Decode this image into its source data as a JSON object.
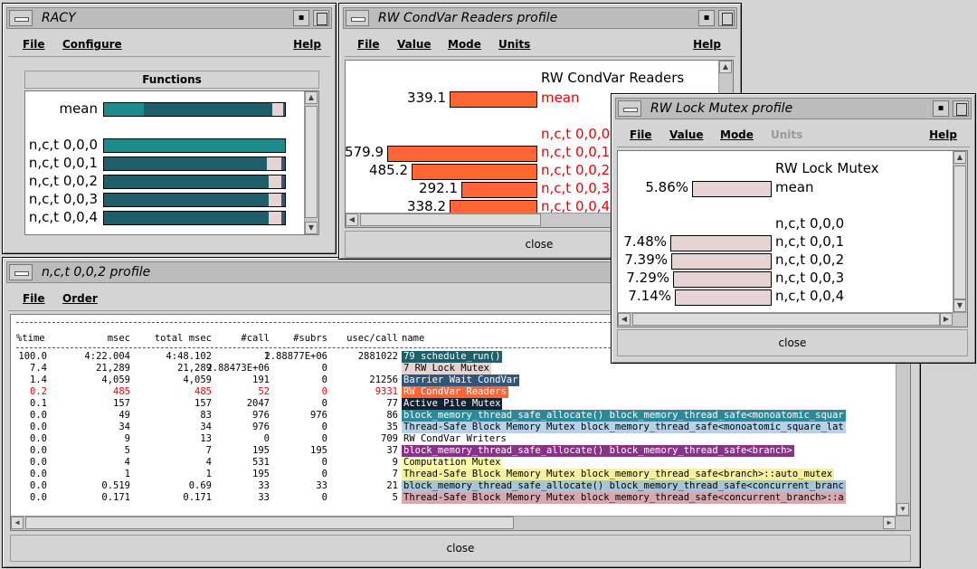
{
  "racy": {
    "title": "RACY",
    "menu": {
      "file": "File",
      "configure": "Configure",
      "help": "Help"
    },
    "functions_header": "Functions",
    "rows": [
      {
        "label": "mean",
        "segments": [
          {
            "w": 0.22,
            "color": "#1a8c8c"
          },
          {
            "w": 0.71,
            "color": "#1f5f6a"
          },
          {
            "w": 0.06,
            "color": "#e6d4d4"
          },
          {
            "w": 0.01,
            "color": "#335577"
          }
        ]
      },
      {
        "label": "n,c,t 0,0,0",
        "segments": [
          {
            "w": 1.0,
            "color": "#1a8c8c"
          }
        ]
      },
      {
        "label": "n,c,t 0,0,1",
        "segments": [
          {
            "w": 0.9,
            "color": "#1f5f6a"
          },
          {
            "w": 0.08,
            "color": "#e6d4d4"
          },
          {
            "w": 0.02,
            "color": "#335577"
          }
        ]
      },
      {
        "label": "n,c,t 0,0,2",
        "segments": [
          {
            "w": 0.91,
            "color": "#1f5f6a"
          },
          {
            "w": 0.07,
            "color": "#e6d4d4"
          },
          {
            "w": 0.02,
            "color": "#335577"
          }
        ]
      },
      {
        "label": "n,c,t 0,0,3",
        "segments": [
          {
            "w": 0.91,
            "color": "#1f5f6a"
          },
          {
            "w": 0.07,
            "color": "#e6d4d4"
          },
          {
            "w": 0.02,
            "color": "#335577"
          }
        ]
      },
      {
        "label": "n,c,t 0,0,4",
        "segments": [
          {
            "w": 0.91,
            "color": "#1f5f6a"
          },
          {
            "w": 0.07,
            "color": "#e6d4d4"
          },
          {
            "w": 0.02,
            "color": "#335577"
          }
        ]
      }
    ]
  },
  "condvar": {
    "title": "RW CondVar Readers  profile",
    "menu": {
      "file": "File",
      "value": "Value",
      "mode": "Mode",
      "units": "Units",
      "help": "Help"
    },
    "heading": "RW CondVar Readers",
    "bar_color": "#ff6633",
    "max": 579.9,
    "rows": [
      {
        "value": "339.1",
        "num": 339.1,
        "label": "mean"
      },
      {
        "value": "",
        "num": 0,
        "label": "n,c,t 0,0,0"
      },
      {
        "value": "579.9",
        "num": 579.9,
        "label": "n,c,t 0,0,1"
      },
      {
        "value": "485.2",
        "num": 485.2,
        "label": "n,c,t 0,0,2"
      },
      {
        "value": "292.1",
        "num": 292.1,
        "label": "n,c,t 0,0,3"
      },
      {
        "value": "338.2",
        "num": 338.2,
        "label": "n,c,t 0,0,4"
      }
    ],
    "close": "close"
  },
  "rwlock": {
    "title": "RW Lock Mutex  profile",
    "menu": {
      "file": "File",
      "value": "Value",
      "mode": "Mode",
      "units": "Units",
      "help": "Help"
    },
    "heading": "RW Lock Mutex",
    "bar_color": "#e6d4d4",
    "max": 7.48,
    "rows": [
      {
        "value": "5.86%",
        "num": 5.86,
        "label": "mean"
      },
      {
        "value": "",
        "num": 0,
        "label": "n,c,t 0,0,0"
      },
      {
        "value": "7.48%",
        "num": 7.48,
        "label": "n,c,t 0,0,1"
      },
      {
        "value": "7.39%",
        "num": 7.39,
        "label": "n,c,t 0,0,2"
      },
      {
        "value": "7.29%",
        "num": 7.29,
        "label": "n,c,t 0,0,3"
      },
      {
        "value": "7.14%",
        "num": 7.14,
        "label": "n,c,t 0,0,4"
      }
    ],
    "close": "close"
  },
  "profile": {
    "title": "n,c,t 0,0,2 profile",
    "menu": {
      "file": "File",
      "order": "Order"
    },
    "headers": [
      "%time",
      "msec",
      "total msec",
      "#call",
      "#subrs",
      "usec/call",
      "name"
    ],
    "rows": [
      {
        "c": [
          "100.0",
          "4:22.004",
          "4:48.102",
          "1",
          "2.88877E+06",
          "2881022"
        ],
        "name": "79 schedule_run()",
        "bg": "#1f5f6a",
        "fg": "#ffffff",
        "red": false
      },
      {
        "c": [
          "7.4",
          "21,289",
          "21,289",
          "2.88473E+06",
          "0",
          ""
        ],
        "name": " 7 RW Lock Mutex",
        "bg": "#e6d4d4",
        "fg": "#000000",
        "red": false
      },
      {
        "c": [
          "1.4",
          "4,059",
          "4,059",
          "191",
          "0",
          "21256"
        ],
        "name": "Barrier Wait CondVar",
        "bg": "#335577",
        "fg": "#ffffff",
        "red": false
      },
      {
        "c": [
          "0.2",
          "485",
          "485",
          "52",
          "0",
          "9331"
        ],
        "name": "RW CondVar Readers",
        "bg": "#ff6633",
        "fg": "#ffffff",
        "red": true
      },
      {
        "c": [
          "0.1",
          "157",
          "157",
          "2047",
          "0",
          "77"
        ],
        "name": "Active Pile Mutex",
        "bg": "#112233",
        "fg": "#ffffff",
        "red": false
      },
      {
        "c": [
          "0.0",
          "49",
          "83",
          "976",
          "976",
          "86"
        ],
        "name": "block_memory_thread_safe_allocate() block_memory_thread_safe<monoatomic_squar",
        "bg": "#2a8a99",
        "fg": "#ffffff",
        "red": false
      },
      {
        "c": [
          "0.0",
          "34",
          "34",
          "976",
          "0",
          "35"
        ],
        "name": "Thread-Safe Block Memory Mutex block_memory_thread_safe<monoatomic_square_lat",
        "bg": "#b8d0e8",
        "fg": "#000000",
        "red": false
      },
      {
        "c": [
          "0.0",
          "9",
          "13",
          "0",
          "0",
          "709"
        ],
        "name": "RW CondVar Writers",
        "bg": "#ffffff",
        "fg": "#000000",
        "red": false
      },
      {
        "c": [
          "0.0",
          "5",
          "7",
          "195",
          "195",
          "37"
        ],
        "name": "block_memory_thread_safe_allocate() block_memory_thread_safe<branch>",
        "bg": "#883388",
        "fg": "#ffffff",
        "red": false
      },
      {
        "c": [
          "0.0",
          "4",
          "4",
          "531",
          "0",
          "9"
        ],
        "name": "Computation Mutex",
        "bg": "#ffffaa",
        "fg": "#000000",
        "red": false
      },
      {
        "c": [
          "0.0",
          "1",
          "1",
          "195",
          "0",
          "7"
        ],
        "name": "Thread-Safe Block Memory Mutex block_memory_thread_safe<branch>::auto_mutex",
        "bg": "#f4f0a0",
        "fg": "#000000",
        "red": false
      },
      {
        "c": [
          "0.0",
          "0.519",
          "0.69",
          "33",
          "33",
          "21"
        ],
        "name": "block_memory_thread_safe_allocate() block_memory_thread_safe<concurrent_branc",
        "bg": "#a8c4d8",
        "fg": "#000000",
        "red": false
      },
      {
        "c": [
          "0.0",
          "0.171",
          "0.171",
          "33",
          "0",
          "5"
        ],
        "name": "Thread-Safe Block Memory Mutex block_memory_thread_safe<concurrent_branch>::a",
        "bg": "#d8a8b0",
        "fg": "#000000",
        "red": false
      }
    ],
    "close": "close"
  }
}
